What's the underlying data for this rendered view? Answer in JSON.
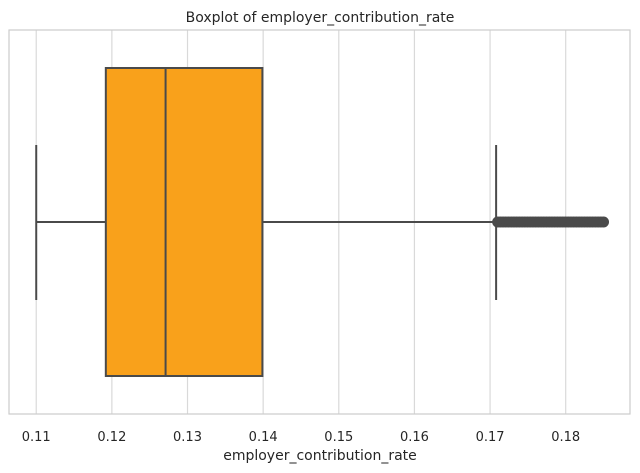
{
  "chart_data": {
    "type": "box",
    "title": "Boxplot of employer_contribution_rate",
    "xlabel": "employer_contribution_rate",
    "ylabel": "",
    "orientation": "horizontal",
    "xlim": [
      0.1064,
      0.1885
    ],
    "xticks": [
      "0.11",
      "0.12",
      "0.13",
      "0.14",
      "0.15",
      "0.16",
      "0.17",
      "0.18"
    ],
    "grid": true,
    "box": {
      "whisker_low": 0.11,
      "q1": 0.1192,
      "median": 0.1271,
      "q3": 0.1399,
      "whisker_high": 0.1708,
      "outliers_range": [
        0.171,
        0.185
      ],
      "fill_color": "#f9a11b",
      "edge_color": "#4a4a4a"
    },
    "grid_color": "#d9d9d9",
    "frame_color": "#cccccc"
  }
}
